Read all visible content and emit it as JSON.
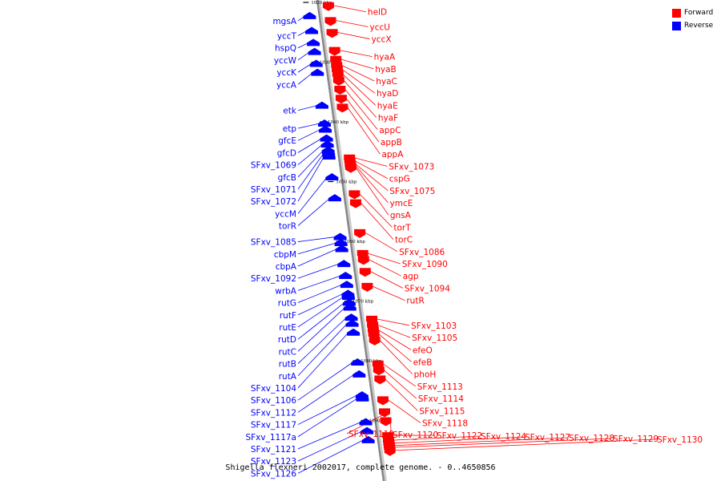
{
  "caption": "Shigella flexneri 2002017, complete genome. - 0..4650856",
  "legend": [
    {
      "label": "Forward",
      "color": "#ff0000"
    },
    {
      "label": "Reverse",
      "color": "#0000ff"
    }
  ],
  "colors": {
    "forward": "#ff0000",
    "reverse": "#0000ff",
    "axis": "#888888"
  },
  "ticks": [
    {
      "label": "1020 kbp",
      "kbp": 1020
    },
    {
      "label": "1030 kbp",
      "kbp": 1030
    },
    {
      "label": "1040 kbp",
      "kbp": 1040
    },
    {
      "label": "1050 kbp",
      "kbp": 1050
    },
    {
      "label": "1060 kbp",
      "kbp": 1060
    },
    {
      "label": "1070 kbp",
      "kbp": 1070
    },
    {
      "label": "1080 kbp",
      "kbp": 1080
    },
    {
      "label": "1090 kbp",
      "kbp": 1090
    }
  ],
  "reverse_genes": [
    {
      "name": "mgsA",
      "kbp": 1022
    },
    {
      "name": "yccT",
      "kbp": 1024.5
    },
    {
      "name": "hspQ",
      "kbp": 1026.5
    },
    {
      "name": "yccW",
      "kbp": 1028
    },
    {
      "name": "yccK",
      "kbp": 1030
    },
    {
      "name": "yccA",
      "kbp": 1031.5
    },
    {
      "name": "etk",
      "kbp": 1037
    },
    {
      "name": "etp",
      "kbp": 1040
    },
    {
      "name": "gfcE",
      "kbp": 1041
    },
    {
      "name": "gfcD",
      "kbp": 1042.5
    },
    {
      "name": "SFxv_1069",
      "kbp": 1043.5
    },
    {
      "name": "gfcB",
      "kbp": 1044.5
    },
    {
      "name": "SFxv_1071",
      "kbp": 1045
    },
    {
      "name": "SFxv_1072",
      "kbp": 1045.5
    },
    {
      "name": "yccM",
      "kbp": 1049
    },
    {
      "name": "torR",
      "kbp": 1052.5
    },
    {
      "name": "SFxv_1085",
      "kbp": 1059
    },
    {
      "name": "cbpM",
      "kbp": 1060
    },
    {
      "name": "cbpA",
      "kbp": 1061
    },
    {
      "name": "SFxv_1092",
      "kbp": 1063.5
    },
    {
      "name": "wrbA",
      "kbp": 1065.5
    },
    {
      "name": "rutG",
      "kbp": 1067
    },
    {
      "name": "rutF",
      "kbp": 1068.5
    },
    {
      "name": "rutE",
      "kbp": 1069
    },
    {
      "name": "rutD",
      "kbp": 1070
    },
    {
      "name": "rutC",
      "kbp": 1070.8
    },
    {
      "name": "rutB",
      "kbp": 1072.5
    },
    {
      "name": "rutA",
      "kbp": 1073.5
    },
    {
      "name": "SFxv_1104",
      "kbp": 1075
    },
    {
      "name": "SFxv_1106",
      "kbp": 1080
    },
    {
      "name": "SFxv_1112",
      "kbp": 1082
    },
    {
      "name": "SFxv_1117",
      "kbp": 1085.5
    },
    {
      "name": "SFxv_1117a",
      "kbp": 1086
    },
    {
      "name": "SFxv_1121",
      "kbp": 1090
    },
    {
      "name": "SFxv_1123",
      "kbp": 1091.5
    },
    {
      "name": "SFxv_1126",
      "kbp": 1093
    }
  ],
  "forward_genes": [
    {
      "name": "helD",
      "kbp": 1020.5
    },
    {
      "name": "yccU",
      "kbp": 1023
    },
    {
      "name": "yccX",
      "kbp": 1025
    },
    {
      "name": "hyaA",
      "kbp": 1028
    },
    {
      "name": "hyaB",
      "kbp": 1029.5
    },
    {
      "name": "hyaC",
      "kbp": 1030.5
    },
    {
      "name": "hyaD",
      "kbp": 1031.2
    },
    {
      "name": "hyaE",
      "kbp": 1032
    },
    {
      "name": "hyaF",
      "kbp": 1033
    },
    {
      "name": "appC",
      "kbp": 1034.5
    },
    {
      "name": "appB",
      "kbp": 1036
    },
    {
      "name": "appA",
      "kbp": 1037.5
    },
    {
      "name": "SFxv_1073",
      "kbp": 1046
    },
    {
      "name": "cspG",
      "kbp": 1046.5
    },
    {
      "name": "SFxv_1075",
      "kbp": 1047
    },
    {
      "name": "ymcE",
      "kbp": 1047.3
    },
    {
      "name": "gnsA",
      "kbp": 1047.6
    },
    {
      "name": "torT",
      "kbp": 1052
    },
    {
      "name": "torC",
      "kbp": 1053.5
    },
    {
      "name": "SFxv_1086",
      "kbp": 1058.5
    },
    {
      "name": "SFxv_1090",
      "kbp": 1062
    },
    {
      "name": "agp",
      "kbp": 1063
    },
    {
      "name": "SFxv_1094",
      "kbp": 1065
    },
    {
      "name": "rutR",
      "kbp": 1067.5
    },
    {
      "name": "SFxv_1103",
      "kbp": 1073
    },
    {
      "name": "SFxv_1105",
      "kbp": 1074
    },
    {
      "name": "efeO",
      "kbp": 1074.8
    },
    {
      "name": "efeB",
      "kbp": 1075.5
    },
    {
      "name": "phoH",
      "kbp": 1076.5
    },
    {
      "name": "SFxv_1113",
      "kbp": 1080.5
    },
    {
      "name": "SFxv_1114",
      "kbp": 1081.5
    },
    {
      "name": "SFxv_1115",
      "kbp": 1083
    },
    {
      "name": "SFxv_1118",
      "kbp": 1086.5
    },
    {
      "name": "SFxv_1119",
      "kbp": 1088.5
    },
    {
      "name": "SFxv_1120",
      "kbp": 1090
    },
    {
      "name": "SFxv_1122",
      "kbp": 1092.5
    },
    {
      "name": "SFxv_1124",
      "kbp": 1093.3
    },
    {
      "name": "SFxv_1127",
      "kbp": 1093.8
    },
    {
      "name": "SFxv_1128",
      "kbp": 1094.2
    },
    {
      "name": "SFxv_1129",
      "kbp": 1094.5
    },
    {
      "name": "SFxv_1130",
      "kbp": 1095
    }
  ]
}
